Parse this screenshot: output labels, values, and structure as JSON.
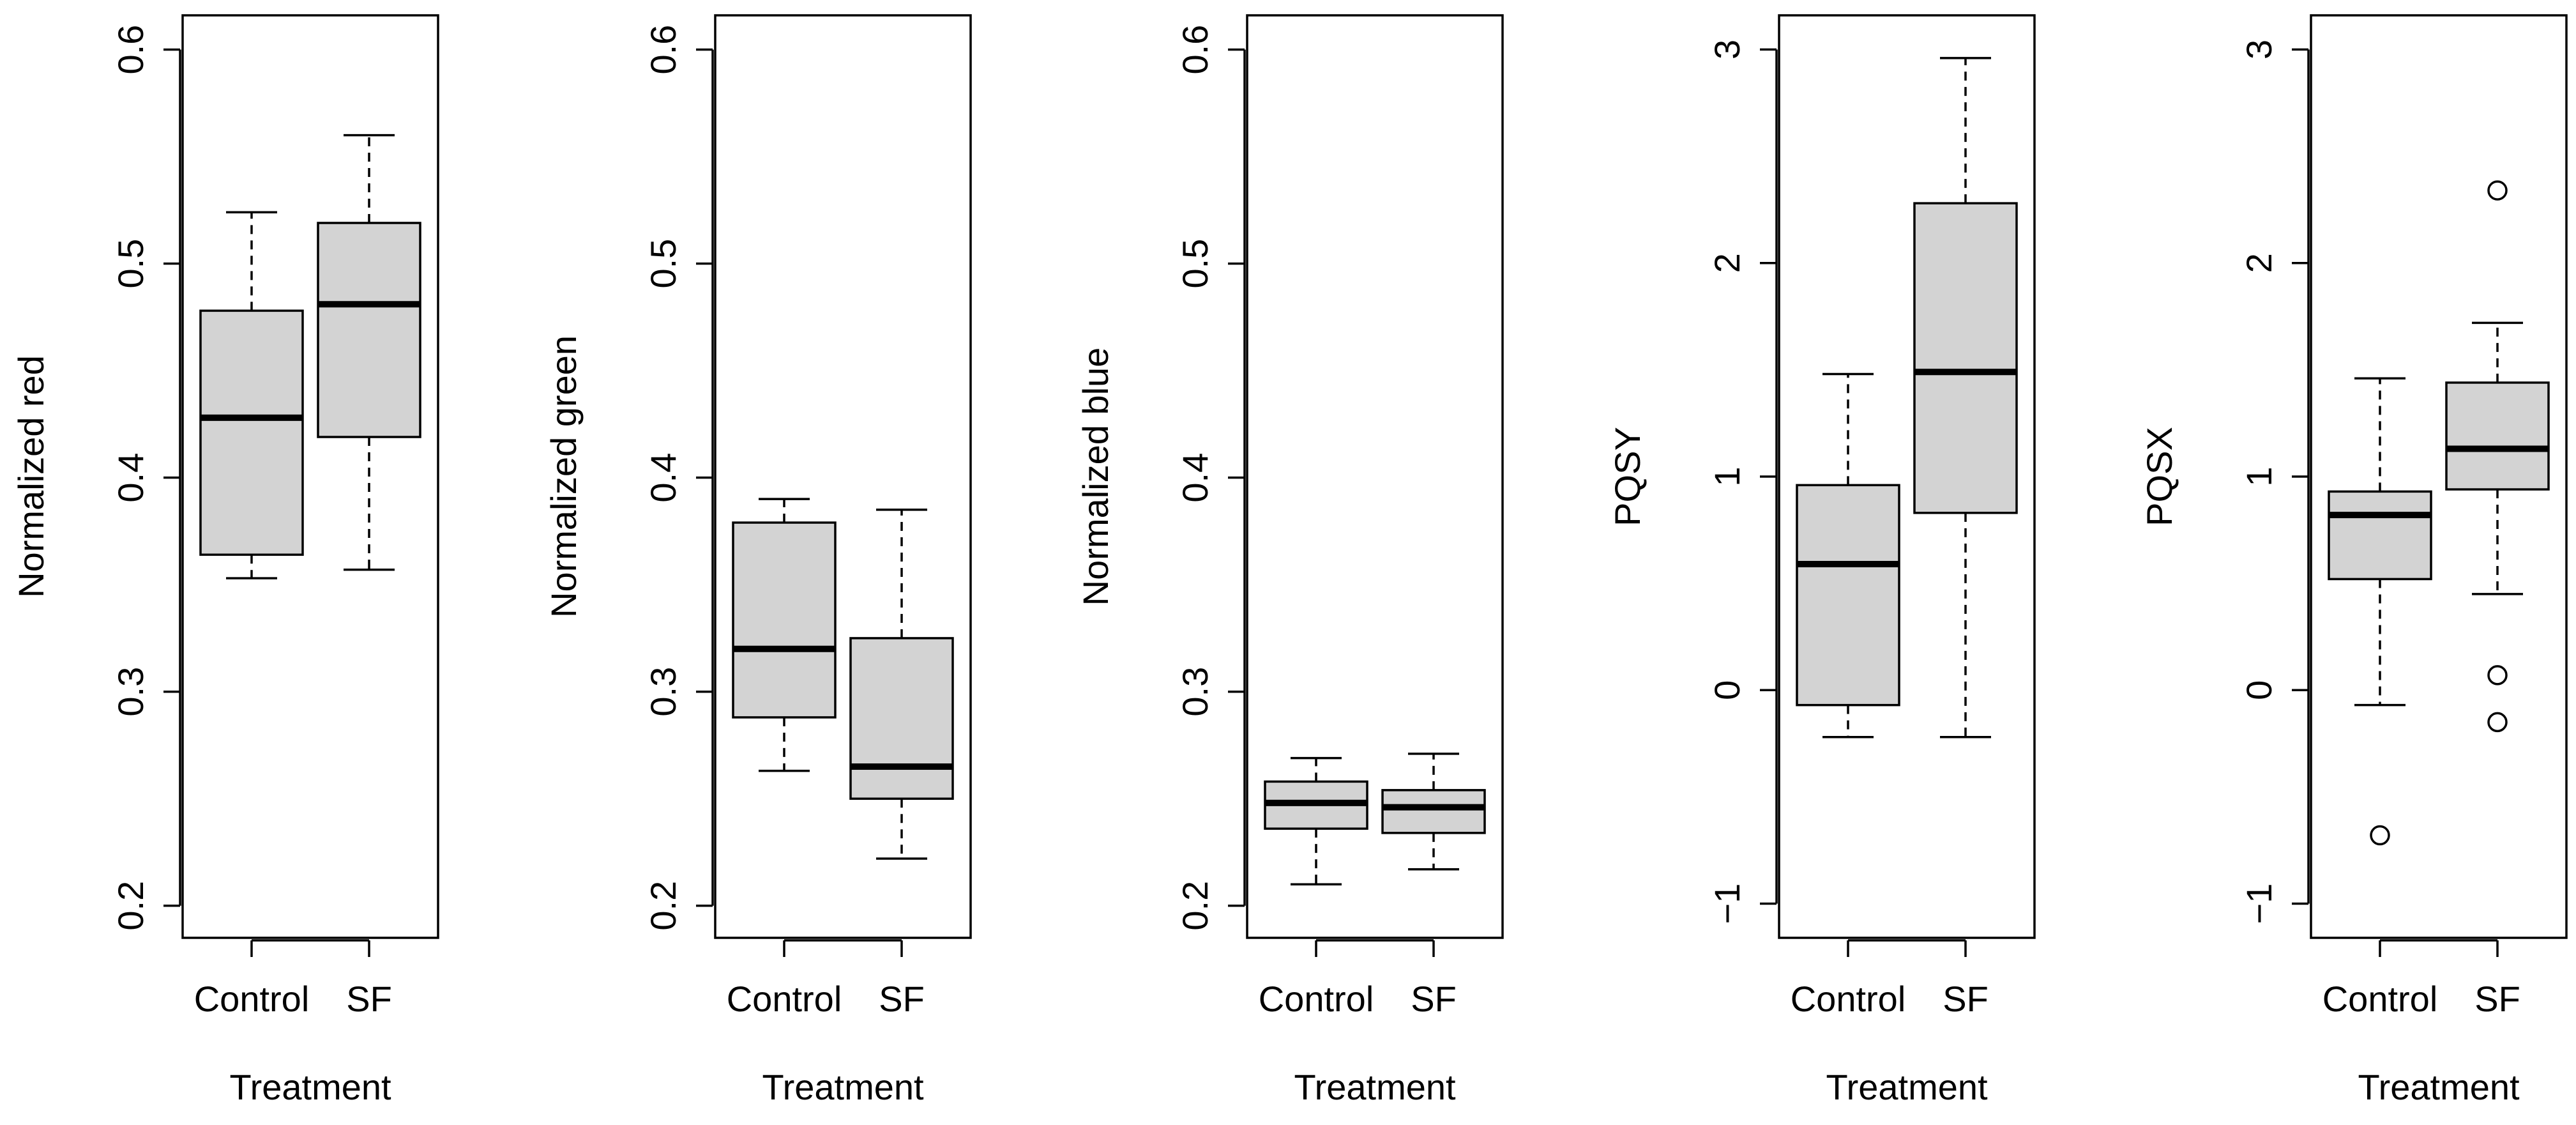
{
  "chart_data": [
    {
      "type": "boxplot",
      "ylabel": "Normalized red",
      "xlabel": "Treatment",
      "ylim": [
        0.185,
        0.616
      ],
      "yticks": [
        0.2,
        0.3,
        0.4,
        0.5,
        0.6
      ],
      "ytick_labels": [
        "0.2",
        "0.3",
        "0.4",
        "0.5",
        "0.6"
      ],
      "categories": [
        "Control",
        "SF"
      ],
      "boxes": [
        {
          "name": "Control",
          "min": 0.353,
          "q1": 0.364,
          "median": 0.428,
          "q3": 0.478,
          "max": 0.524,
          "outliers": []
        },
        {
          "name": "SF",
          "min": 0.357,
          "q1": 0.419,
          "median": 0.481,
          "q3": 0.519,
          "max": 0.56,
          "outliers": []
        }
      ]
    },
    {
      "type": "boxplot",
      "ylabel": "Normalized green",
      "xlabel": "Treatment",
      "ylim": [
        0.185,
        0.616
      ],
      "yticks": [
        0.2,
        0.3,
        0.4,
        0.5,
        0.6
      ],
      "ytick_labels": [
        "0.2",
        "0.3",
        "0.4",
        "0.5",
        "0.6"
      ],
      "categories": [
        "Control",
        "SF"
      ],
      "boxes": [
        {
          "name": "Control",
          "min": 0.263,
          "q1": 0.288,
          "median": 0.32,
          "q3": 0.379,
          "max": 0.39,
          "outliers": []
        },
        {
          "name": "SF",
          "min": 0.222,
          "q1": 0.25,
          "median": 0.265,
          "q3": 0.325,
          "max": 0.385,
          "outliers": []
        }
      ]
    },
    {
      "type": "boxplot",
      "ylabel": "Normalized blue",
      "xlabel": "Treatment",
      "ylim": [
        0.185,
        0.616
      ],
      "yticks": [
        0.2,
        0.3,
        0.4,
        0.5,
        0.6
      ],
      "ytick_labels": [
        "0.2",
        "0.3",
        "0.4",
        "0.5",
        "0.6"
      ],
      "categories": [
        "Control",
        "SF"
      ],
      "boxes": [
        {
          "name": "Control",
          "min": 0.21,
          "q1": 0.236,
          "median": 0.248,
          "q3": 0.258,
          "max": 0.269,
          "outliers": []
        },
        {
          "name": "SF",
          "min": 0.217,
          "q1": 0.234,
          "median": 0.246,
          "q3": 0.254,
          "max": 0.271,
          "outliers": []
        }
      ]
    },
    {
      "type": "boxplot",
      "ylabel": "PQSY",
      "xlabel": "Treatment",
      "ylim": [
        -1.16,
        3.16
      ],
      "yticks": [
        -1,
        0,
        1,
        2,
        3
      ],
      "ytick_labels": [
        "−1",
        "0",
        "1",
        "2",
        "3"
      ],
      "categories": [
        "Control",
        "SF"
      ],
      "boxes": [
        {
          "name": "Control",
          "min": -0.22,
          "q1": -0.07,
          "median": 0.59,
          "q3": 0.96,
          "max": 1.48,
          "outliers": []
        },
        {
          "name": "SF",
          "min": -0.22,
          "q1": 0.83,
          "median": 1.49,
          "q3": 2.28,
          "max": 2.96,
          "outliers": []
        }
      ]
    },
    {
      "type": "boxplot",
      "ylabel": "PQSX",
      "xlabel": "Treatment",
      "ylim": [
        -1.16,
        3.16
      ],
      "yticks": [
        -1,
        0,
        1,
        2,
        3
      ],
      "ytick_labels": [
        "−1",
        "0",
        "1",
        "2",
        "3"
      ],
      "categories": [
        "Control",
        "SF"
      ],
      "boxes": [
        {
          "name": "Control",
          "min": -0.07,
          "q1": 0.52,
          "median": 0.82,
          "q3": 0.93,
          "max": 1.46,
          "outliers": [
            -0.68
          ]
        },
        {
          "name": "SF",
          "min": 0.45,
          "q1": 0.94,
          "median": 1.13,
          "q3": 1.44,
          "max": 1.72,
          "outliers": [
            2.34,
            0.07,
            -0.15
          ]
        }
      ]
    }
  ]
}
